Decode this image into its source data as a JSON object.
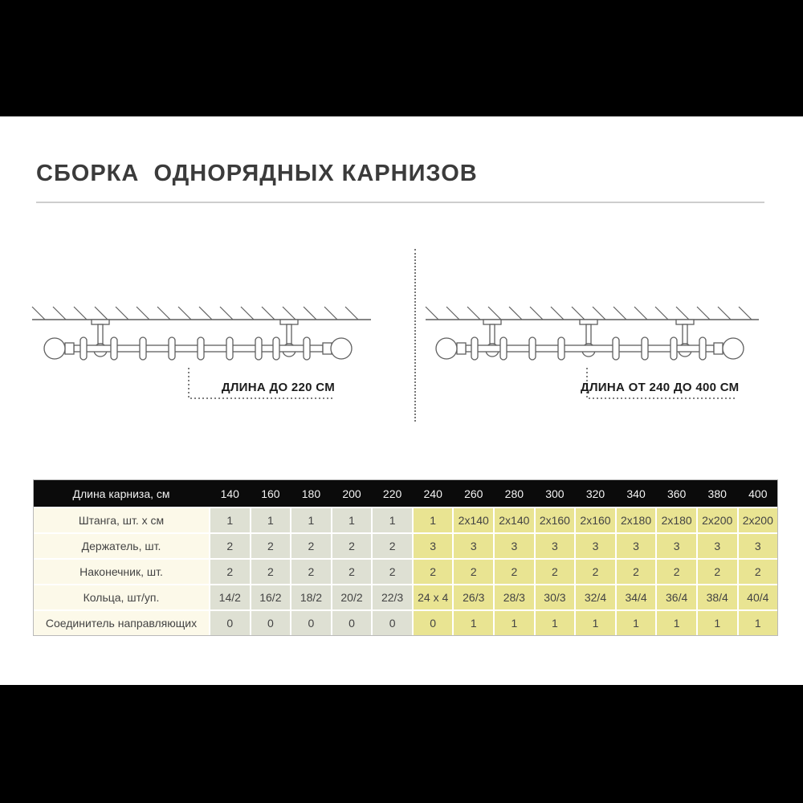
{
  "title": "СБОРКА  ОДНОРЯДНЫХ КАРНИЗОВ",
  "diagrams": {
    "left_label": "ДЛИНА ДО 220 СМ",
    "right_label": "ДЛИНА ОТ 240 ДО 400 СМ"
  },
  "table": {
    "header_label": "Длина карниза, см",
    "columns": [
      "140",
      "160",
      "180",
      "200",
      "220",
      "240",
      "260",
      "280",
      "300",
      "320",
      "340",
      "360",
      "380",
      "400"
    ],
    "group_split": 5,
    "rows": [
      {
        "label": "Штанга, шт. x см",
        "values": [
          "1",
          "1",
          "1",
          "1",
          "1",
          "1",
          "2x140",
          "2x140",
          "2x160",
          "2x160",
          "2x180",
          "2x180",
          "2x200",
          "2x200"
        ]
      },
      {
        "label": "Держатель, шт.",
        "values": [
          "2",
          "2",
          "2",
          "2",
          "2",
          "3",
          "3",
          "3",
          "3",
          "3",
          "3",
          "3",
          "3",
          "3"
        ]
      },
      {
        "label": "Наконечник, шт.",
        "values": [
          "2",
          "2",
          "2",
          "2",
          "2",
          "2",
          "2",
          "2",
          "2",
          "2",
          "2",
          "2",
          "2",
          "2"
        ]
      },
      {
        "label": "Кольца, шт/уп.",
        "values": [
          "14/2",
          "16/2",
          "18/2",
          "20/2",
          "22/3",
          "24 x 4",
          "26/3",
          "28/3",
          "30/3",
          "32/4",
          "34/4",
          "36/4",
          "38/4",
          "40/4"
        ]
      },
      {
        "label": "Соединитель направляющих",
        "values": [
          "0",
          "0",
          "0",
          "0",
          "0",
          "0",
          "1",
          "1",
          "1",
          "1",
          "1",
          "1",
          "1",
          "1"
        ]
      }
    ]
  },
  "colors": {
    "header_bg": "#0b0b0b",
    "label_column_bg": "#fcf9e9",
    "short_group_bg": "#dee0d3",
    "long_group_bg": "#e9e492",
    "title_color": "#3b3b3b",
    "diagram_stroke": "#5f5f5f"
  }
}
